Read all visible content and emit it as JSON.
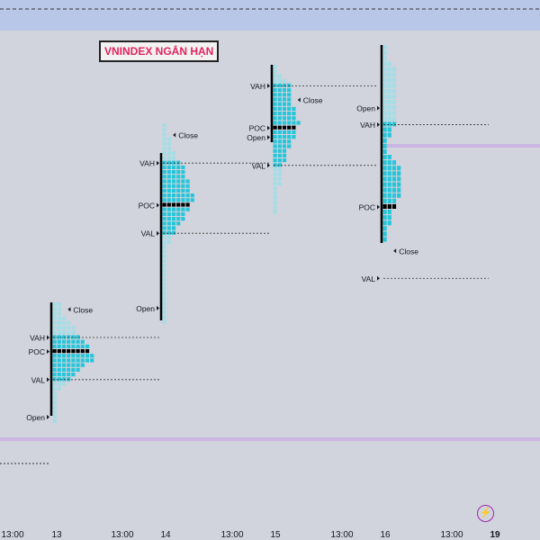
{
  "chart_data": {
    "type": "market-profile",
    "title": "VNINDEX NGẮN HẠN",
    "x_ticks": [
      "13:00",
      "13",
      "13:00",
      "14",
      "13:00",
      "15",
      "13:00",
      "16",
      "13:00",
      "19"
    ],
    "level_labels": [
      "VAH",
      "POC",
      "VAL",
      "Open",
      "Close"
    ],
    "sessions": [
      {
        "date": "13",
        "poc_label": "POC",
        "vah_label": "VAH",
        "val_label": "VAL",
        "open_label": "Open",
        "close_label": "Close",
        "rows": [
          2,
          2,
          2,
          3,
          4,
          5,
          5,
          6,
          7,
          8,
          8,
          9,
          9,
          7,
          6,
          5,
          4,
          3,
          2,
          1,
          1,
          1,
          1,
          1,
          1,
          1
        ]
      },
      {
        "date": "14",
        "poc_label": "POC",
        "vah_label": "VAH",
        "val_label": "VAL",
        "open_label": "Open",
        "close_label": "Close",
        "rows": [
          1,
          1,
          1,
          2,
          2,
          2,
          3,
          3,
          4,
          5,
          5,
          5,
          6,
          6,
          6,
          7,
          7,
          6,
          6,
          5,
          5,
          4,
          3,
          3,
          2,
          2,
          1,
          1,
          1,
          1,
          1,
          1,
          1,
          1,
          1,
          1,
          1,
          1,
          1,
          1,
          1,
          1,
          1
        ]
      },
      {
        "date": "15",
        "poc_label": "POC",
        "vah_label": "VAH",
        "val_label": "VAL",
        "open_label": "Open",
        "close_label": "Close",
        "rows": [
          1,
          1,
          2,
          3,
          4,
          4,
          4,
          4,
          4,
          5,
          5,
          5,
          6,
          5,
          5,
          5,
          4,
          4,
          3,
          3,
          3,
          2,
          2,
          2,
          2,
          2,
          1,
          1,
          1,
          1,
          1,
          1
        ]
      },
      {
        "date": "16",
        "poc_label": "POC",
        "vah_label": "VAH",
        "val_label": "VAL",
        "open_label": "Open",
        "close_label": "Close",
        "rows": [
          1,
          1,
          1,
          2,
          3,
          3,
          3,
          3,
          3,
          3,
          3,
          3,
          3,
          3,
          3,
          2,
          2,
          1,
          1,
          1,
          2,
          3,
          4,
          4,
          4,
          4,
          4,
          4,
          3,
          3,
          2,
          2,
          2,
          1,
          1,
          1
        ]
      }
    ],
    "colors": {
      "background": "#d1d4dc",
      "value_area": "#26c6da",
      "outside": "#a4dde6",
      "poc": "#000000",
      "band": "#cbb6e3",
      "top_band": "#b8c6e8",
      "line": "#000000"
    }
  }
}
